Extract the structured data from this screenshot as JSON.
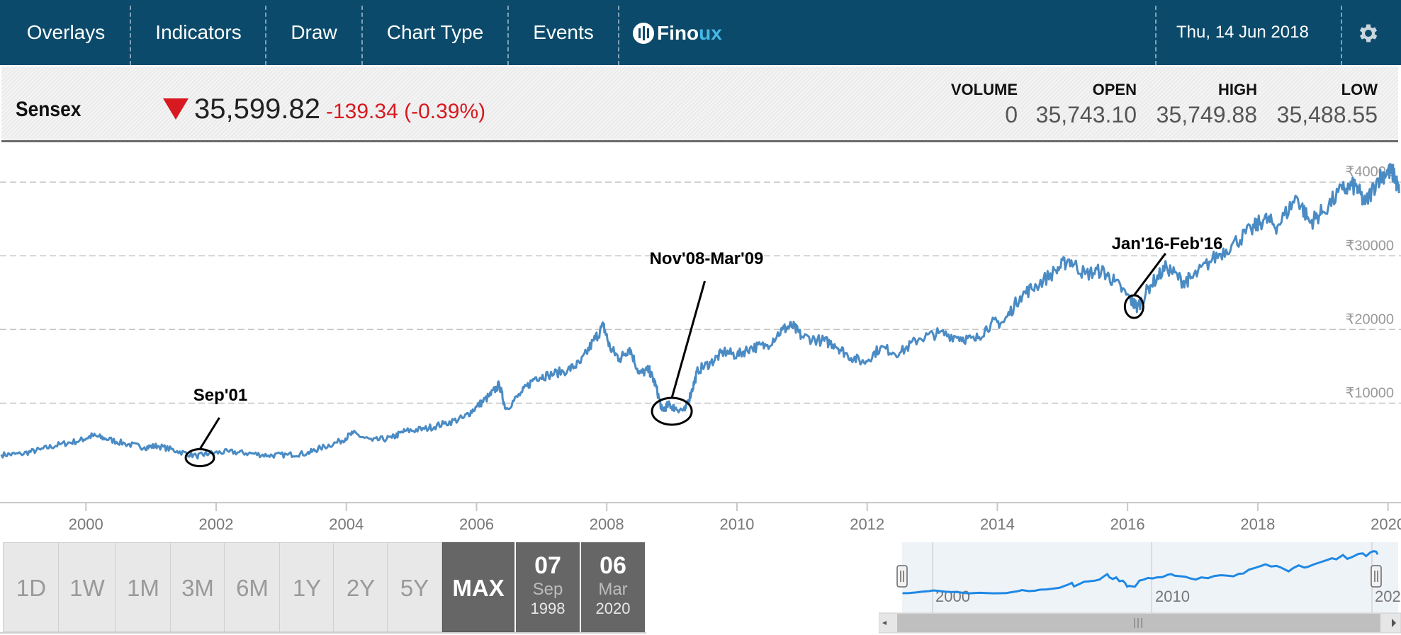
{
  "menu": {
    "items": [
      "Overlays",
      "Indicators",
      "Draw",
      "Chart Type",
      "Events"
    ],
    "logo_left": "Fino",
    "logo_right": "ux",
    "date": "Thu, 14 Jun 2018"
  },
  "quote": {
    "symbol": "Sensex",
    "direction": "down",
    "price": "35,599.82",
    "change": "-139.34 (-0.39%)",
    "stats": [
      {
        "label": "VOLUME",
        "value": "0"
      },
      {
        "label": "OPEN",
        "value": "35,743.10"
      },
      {
        "label": "HIGH",
        "value": "35,749.88"
      },
      {
        "label": "LOW",
        "value": "35,488.55"
      }
    ]
  },
  "range": {
    "buttons": [
      "1D",
      "1W",
      "1M",
      "3M",
      "6M",
      "1Y",
      "2Y",
      "5Y",
      "MAX"
    ],
    "active": "MAX",
    "from": {
      "day": "07",
      "month": "Sep",
      "year": "1998"
    },
    "to": {
      "day": "06",
      "month": "Mar",
      "year": "2020"
    }
  },
  "navigator": {
    "labels": [
      "2000",
      "2010",
      "202"
    ]
  },
  "colors": {
    "line": "#4a8bc4",
    "navigator_line": "#1e88e5",
    "header": "#0b4a6b",
    "down": "#d71920"
  },
  "chart_data": {
    "type": "line",
    "title": "",
    "xlabel": "",
    "ylabel": "",
    "x_ticks": [
      "2000",
      "2002",
      "2004",
      "2006",
      "2008",
      "2010",
      "2012",
      "2014",
      "2016",
      "2018",
      "2020"
    ],
    "y_ticks": [
      {
        "value": 10000,
        "label": "₹10000"
      },
      {
        "value": 20000,
        "label": "₹20000"
      },
      {
        "value": 30000,
        "label": "₹30000"
      },
      {
        "value": 40000,
        "label": "₹40000"
      }
    ],
    "ylim": [
      -3500,
      45500
    ],
    "xlim": [
      1998.68,
      2020.2
    ],
    "grid": "horizontal dashed",
    "series": [
      {
        "values": [
          [
            1998.7,
            3000
          ],
          [
            1999.0,
            3100
          ],
          [
            1999.3,
            3700
          ],
          [
            1999.6,
            4400
          ],
          [
            1999.9,
            4900
          ],
          [
            2000.1,
            5600
          ],
          [
            2000.3,
            5200
          ],
          [
            2000.6,
            4500
          ],
          [
            2000.9,
            4000
          ],
          [
            2001.1,
            4200
          ],
          [
            2001.4,
            3500
          ],
          [
            2001.7,
            2800
          ],
          [
            2001.9,
            3200
          ],
          [
            2002.2,
            3400
          ],
          [
            2002.5,
            3200
          ],
          [
            2002.8,
            2900
          ],
          [
            2003.1,
            3000
          ],
          [
            2003.4,
            3200
          ],
          [
            2003.6,
            3900
          ],
          [
            2003.9,
            4800
          ],
          [
            2004.1,
            5900
          ],
          [
            2004.4,
            4900
          ],
          [
            2004.7,
            5300
          ],
          [
            2004.9,
            6200
          ],
          [
            2005.2,
            6500
          ],
          [
            2005.5,
            7200
          ],
          [
            2005.8,
            8000
          ],
          [
            2006.0,
            9500
          ],
          [
            2006.2,
            11000
          ],
          [
            2006.35,
            12500
          ],
          [
            2006.45,
            9200
          ],
          [
            2006.7,
            11500
          ],
          [
            2006.9,
            13500
          ],
          [
            2007.1,
            13800
          ],
          [
            2007.4,
            14500
          ],
          [
            2007.6,
            15500
          ],
          [
            2007.8,
            18500
          ],
          [
            2007.95,
            20500
          ],
          [
            2008.05,
            17500
          ],
          [
            2008.2,
            16000
          ],
          [
            2008.35,
            17500
          ],
          [
            2008.5,
            14000
          ],
          [
            2008.65,
            14500
          ],
          [
            2008.75,
            12500
          ],
          [
            2008.85,
            9000
          ],
          [
            2008.95,
            9800
          ],
          [
            2009.05,
            9300
          ],
          [
            2009.2,
            9000
          ],
          [
            2009.3,
            11500
          ],
          [
            2009.4,
            14500
          ],
          [
            2009.6,
            15500
          ],
          [
            2009.8,
            17000
          ],
          [
            2010.0,
            16500
          ],
          [
            2010.2,
            17500
          ],
          [
            2010.45,
            17800
          ],
          [
            2010.7,
            20000
          ],
          [
            2010.85,
            20500
          ],
          [
            2011.0,
            19000
          ],
          [
            2011.3,
            18500
          ],
          [
            2011.5,
            18000
          ],
          [
            2011.7,
            16500
          ],
          [
            2011.95,
            15500
          ],
          [
            2012.2,
            17500
          ],
          [
            2012.5,
            16800
          ],
          [
            2012.8,
            18800
          ],
          [
            2013.1,
            19500
          ],
          [
            2013.4,
            19000
          ],
          [
            2013.65,
            18500
          ],
          [
            2013.9,
            20800
          ],
          [
            2014.1,
            21000
          ],
          [
            2014.35,
            24500
          ],
          [
            2014.6,
            26000
          ],
          [
            2014.9,
            28000
          ],
          [
            2015.1,
            29500
          ],
          [
            2015.35,
            27500
          ],
          [
            2015.6,
            28000
          ],
          [
            2015.8,
            26500
          ],
          [
            2016.05,
            24000
          ],
          [
            2016.15,
            23000
          ],
          [
            2016.35,
            26000
          ],
          [
            2016.6,
            28500
          ],
          [
            2016.85,
            26500
          ],
          [
            2017.0,
            27000
          ],
          [
            2017.3,
            29500
          ],
          [
            2017.6,
            31500
          ],
          [
            2017.9,
            33500
          ],
          [
            2018.1,
            35000
          ],
          [
            2018.3,
            34000
          ],
          [
            2018.6,
            38000
          ],
          [
            2018.8,
            34500
          ],
          [
            2019.0,
            36000
          ],
          [
            2019.3,
            39000
          ],
          [
            2019.5,
            39500
          ],
          [
            2019.65,
            37000
          ],
          [
            2019.85,
            40500
          ],
          [
            2020.0,
            41500
          ],
          [
            2020.1,
            41000
          ],
          [
            2020.17,
            38500
          ]
        ]
      }
    ],
    "annotations": [
      {
        "label": "Sep'01",
        "x": 2001.75,
        "y": 2600
      },
      {
        "label": "Nov'08-Mar'09",
        "x": 2009.0,
        "y": 8900
      },
      {
        "label": "Jan'16-Feb'16",
        "x": 2016.1,
        "y": 23100
      }
    ]
  }
}
